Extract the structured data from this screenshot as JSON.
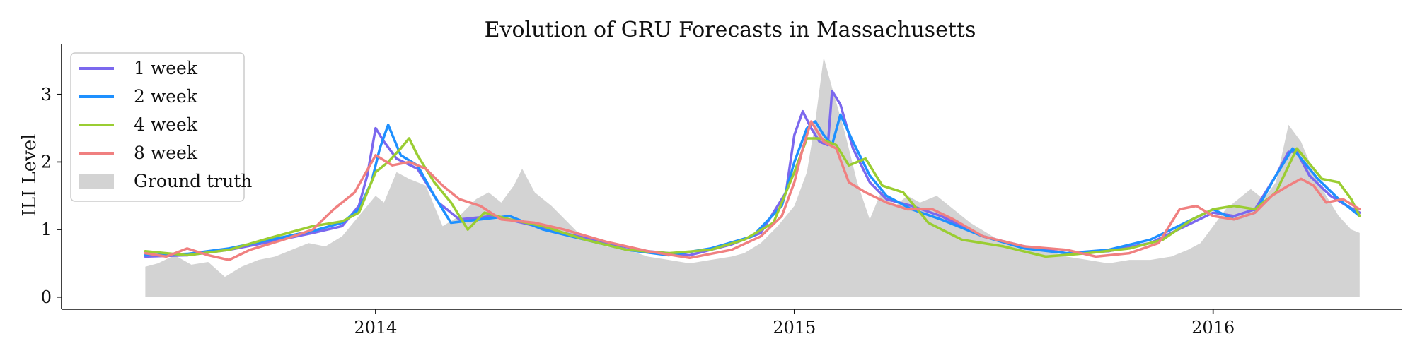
{
  "chart_data": {
    "type": "line",
    "title": "Evolution of GRU Forecasts in Massachusetts",
    "xlabel": "",
    "ylabel": "ILI Level",
    "x_start_year": 2013.45,
    "x_end_year": 2016.35,
    "xlim": [
      2013.25,
      2016.45
    ],
    "ylim": [
      -0.18,
      3.75
    ],
    "x_ticks": [
      {
        "value": 2014,
        "label": "2014"
      },
      {
        "value": 2015,
        "label": "2015"
      },
      {
        "value": 2016,
        "label": "2016"
      }
    ],
    "y_ticks": [
      {
        "value": 0,
        "label": "0"
      },
      {
        "value": 1,
        "label": "1"
      },
      {
        "value": 2,
        "label": "2"
      },
      {
        "value": 3,
        "label": "3"
      }
    ],
    "grid": false,
    "legend": {
      "position": "top-left",
      "entries": [
        {
          "key": "1 week",
          "label": "1 week",
          "color": "#7b68ee",
          "kind": "line"
        },
        {
          "key": "2 week",
          "label": "2 week",
          "color": "#1e90ff",
          "kind": "line"
        },
        {
          "key": "4 week",
          "label": "4 week",
          "color": "#9acd32",
          "kind": "line"
        },
        {
          "key": "8 week",
          "label": "8 week",
          "color": "#f08080",
          "kind": "line"
        },
        {
          "key": "Ground truth",
          "label": "Ground truth",
          "color": "#d3d3d3",
          "kind": "area"
        }
      ]
    },
    "ground_truth": {
      "name": "Ground truth",
      "color": "#d3d3d3",
      "points": [
        [
          2013.45,
          0.45
        ],
        [
          2013.48,
          0.5
        ],
        [
          2013.52,
          0.62
        ],
        [
          2013.56,
          0.48
        ],
        [
          2013.6,
          0.52
        ],
        [
          2013.64,
          0.3
        ],
        [
          2013.68,
          0.45
        ],
        [
          2013.72,
          0.55
        ],
        [
          2013.76,
          0.6
        ],
        [
          2013.8,
          0.7
        ],
        [
          2013.84,
          0.8
        ],
        [
          2013.88,
          0.75
        ],
        [
          2013.92,
          0.9
        ],
        [
          2013.96,
          1.2
        ],
        [
          2014.0,
          1.5
        ],
        [
          2014.02,
          1.4
        ],
        [
          2014.05,
          1.85
        ],
        [
          2014.08,
          1.75
        ],
        [
          2014.12,
          1.65
        ],
        [
          2014.16,
          1.05
        ],
        [
          2014.2,
          1.2
        ],
        [
          2014.24,
          1.45
        ],
        [
          2014.27,
          1.55
        ],
        [
          2014.3,
          1.4
        ],
        [
          2014.33,
          1.65
        ],
        [
          2014.35,
          1.9
        ],
        [
          2014.38,
          1.55
        ],
        [
          2014.42,
          1.35
        ],
        [
          2014.46,
          1.1
        ],
        [
          2014.5,
          0.85
        ],
        [
          2014.55,
          0.75
        ],
        [
          2014.6,
          0.7
        ],
        [
          2014.65,
          0.6
        ],
        [
          2014.7,
          0.55
        ],
        [
          2014.75,
          0.5
        ],
        [
          2014.8,
          0.55
        ],
        [
          2014.85,
          0.6
        ],
        [
          2014.88,
          0.65
        ],
        [
          2014.92,
          0.8
        ],
        [
          2014.96,
          1.05
        ],
        [
          2015.0,
          1.35
        ],
        [
          2015.03,
          1.85
        ],
        [
          2015.05,
          2.6
        ],
        [
          2015.07,
          3.55
        ],
        [
          2015.09,
          3.1
        ],
        [
          2015.12,
          2.45
        ],
        [
          2015.15,
          1.7
        ],
        [
          2015.18,
          1.15
        ],
        [
          2015.21,
          1.6
        ],
        [
          2015.24,
          1.35
        ],
        [
          2015.27,
          1.5
        ],
        [
          2015.3,
          1.4
        ],
        [
          2015.34,
          1.5
        ],
        [
          2015.38,
          1.3
        ],
        [
          2015.42,
          1.1
        ],
        [
          2015.46,
          0.95
        ],
        [
          2015.5,
          0.8
        ],
        [
          2015.55,
          0.75
        ],
        [
          2015.6,
          0.7
        ],
        [
          2015.65,
          0.6
        ],
        [
          2015.7,
          0.55
        ],
        [
          2015.75,
          0.5
        ],
        [
          2015.8,
          0.55
        ],
        [
          2015.85,
          0.55
        ],
        [
          2015.9,
          0.6
        ],
        [
          2015.94,
          0.7
        ],
        [
          2015.97,
          0.8
        ],
        [
          2016.0,
          1.05
        ],
        [
          2016.03,
          1.3
        ],
        [
          2016.06,
          1.45
        ],
        [
          2016.09,
          1.6
        ],
        [
          2016.12,
          1.45
        ],
        [
          2016.15,
          1.7
        ],
        [
          2016.18,
          2.55
        ],
        [
          2016.21,
          2.3
        ],
        [
          2016.24,
          1.85
        ],
        [
          2016.27,
          1.5
        ],
        [
          2016.3,
          1.2
        ],
        [
          2016.33,
          1.0
        ],
        [
          2016.35,
          0.95
        ]
      ]
    },
    "series": [
      {
        "name": "1 week",
        "color": "#7b68ee",
        "points": [
          [
            2013.45,
            0.6
          ],
          [
            2013.55,
            0.62
          ],
          [
            2013.65,
            0.7
          ],
          [
            2013.75,
            0.82
          ],
          [
            2013.85,
            0.95
          ],
          [
            2013.92,
            1.05
          ],
          [
            2013.96,
            1.35
          ],
          [
            2013.98,
            1.8
          ],
          [
            2014.0,
            2.5
          ],
          [
            2014.02,
            2.3
          ],
          [
            2014.05,
            2.05
          ],
          [
            2014.1,
            1.9
          ],
          [
            2014.15,
            1.4
          ],
          [
            2014.2,
            1.15
          ],
          [
            2014.28,
            1.2
          ],
          [
            2014.35,
            1.1
          ],
          [
            2014.45,
            0.95
          ],
          [
            2014.55,
            0.8
          ],
          [
            2014.65,
            0.68
          ],
          [
            2014.75,
            0.62
          ],
          [
            2014.85,
            0.78
          ],
          [
            2014.92,
            0.95
          ],
          [
            2014.98,
            1.55
          ],
          [
            2015.0,
            2.4
          ],
          [
            2015.02,
            2.75
          ],
          [
            2015.04,
            2.5
          ],
          [
            2015.06,
            2.3
          ],
          [
            2015.08,
            2.25
          ],
          [
            2015.09,
            3.05
          ],
          [
            2015.11,
            2.85
          ],
          [
            2015.14,
            2.2
          ],
          [
            2015.18,
            1.7
          ],
          [
            2015.22,
            1.45
          ],
          [
            2015.28,
            1.35
          ],
          [
            2015.35,
            1.2
          ],
          [
            2015.45,
            0.9
          ],
          [
            2015.55,
            0.75
          ],
          [
            2015.65,
            0.65
          ],
          [
            2015.75,
            0.68
          ],
          [
            2015.85,
            0.8
          ],
          [
            2015.95,
            1.1
          ],
          [
            2016.0,
            1.25
          ],
          [
            2016.05,
            1.2
          ],
          [
            2016.1,
            1.3
          ],
          [
            2016.15,
            1.8
          ],
          [
            2016.18,
            2.15
          ],
          [
            2016.2,
            2.15
          ],
          [
            2016.23,
            1.8
          ],
          [
            2016.28,
            1.5
          ],
          [
            2016.32,
            1.35
          ],
          [
            2016.35,
            1.25
          ]
        ]
      },
      {
        "name": "2 week",
        "color": "#1e90ff",
        "points": [
          [
            2013.45,
            0.62
          ],
          [
            2013.55,
            0.64
          ],
          [
            2013.65,
            0.72
          ],
          [
            2013.75,
            0.85
          ],
          [
            2013.85,
            0.98
          ],
          [
            2013.92,
            1.1
          ],
          [
            2013.96,
            1.3
          ],
          [
            2013.99,
            1.7
          ],
          [
            2014.01,
            2.2
          ],
          [
            2014.03,
            2.55
          ],
          [
            2014.06,
            2.1
          ],
          [
            2014.1,
            1.95
          ],
          [
            2014.14,
            1.5
          ],
          [
            2014.18,
            1.1
          ],
          [
            2014.25,
            1.15
          ],
          [
            2014.32,
            1.2
          ],
          [
            2014.4,
            1.0
          ],
          [
            2014.5,
            0.85
          ],
          [
            2014.6,
            0.7
          ],
          [
            2014.7,
            0.62
          ],
          [
            2014.8,
            0.72
          ],
          [
            2014.9,
            0.9
          ],
          [
            2014.97,
            1.35
          ],
          [
            2015.0,
            2.0
          ],
          [
            2015.03,
            2.5
          ],
          [
            2015.05,
            2.6
          ],
          [
            2015.07,
            2.4
          ],
          [
            2015.09,
            2.25
          ],
          [
            2015.11,
            2.7
          ],
          [
            2015.14,
            2.3
          ],
          [
            2015.18,
            1.8
          ],
          [
            2015.22,
            1.5
          ],
          [
            2015.28,
            1.3
          ],
          [
            2015.35,
            1.15
          ],
          [
            2015.45,
            0.9
          ],
          [
            2015.55,
            0.72
          ],
          [
            2015.65,
            0.65
          ],
          [
            2015.75,
            0.7
          ],
          [
            2015.85,
            0.85
          ],
          [
            2015.95,
            1.15
          ],
          [
            2016.0,
            1.3
          ],
          [
            2016.05,
            1.15
          ],
          [
            2016.1,
            1.25
          ],
          [
            2016.15,
            1.8
          ],
          [
            2016.19,
            2.2
          ],
          [
            2016.21,
            2.05
          ],
          [
            2016.25,
            1.75
          ],
          [
            2016.3,
            1.45
          ],
          [
            2016.35,
            1.2
          ]
        ]
      },
      {
        "name": "4 week",
        "color": "#9acd32",
        "points": [
          [
            2013.45,
            0.68
          ],
          [
            2013.5,
            0.65
          ],
          [
            2013.55,
            0.62
          ],
          [
            2013.65,
            0.7
          ],
          [
            2013.75,
            0.88
          ],
          [
            2013.85,
            1.05
          ],
          [
            2013.92,
            1.12
          ],
          [
            2013.96,
            1.25
          ],
          [
            2014.0,
            1.85
          ],
          [
            2014.03,
            2.0
          ],
          [
            2014.06,
            2.2
          ],
          [
            2014.08,
            2.35
          ],
          [
            2014.1,
            2.1
          ],
          [
            2014.14,
            1.7
          ],
          [
            2014.18,
            1.4
          ],
          [
            2014.22,
            1.0
          ],
          [
            2014.26,
            1.25
          ],
          [
            2014.32,
            1.15
          ],
          [
            2014.4,
            1.05
          ],
          [
            2014.5,
            0.85
          ],
          [
            2014.6,
            0.7
          ],
          [
            2014.7,
            0.65
          ],
          [
            2014.8,
            0.7
          ],
          [
            2014.88,
            0.85
          ],
          [
            2014.95,
            1.1
          ],
          [
            2015.0,
            1.85
          ],
          [
            2015.03,
            2.35
          ],
          [
            2015.06,
            2.35
          ],
          [
            2015.1,
            2.25
          ],
          [
            2015.13,
            1.95
          ],
          [
            2015.17,
            2.05
          ],
          [
            2015.21,
            1.65
          ],
          [
            2015.26,
            1.55
          ],
          [
            2015.32,
            1.1
          ],
          [
            2015.4,
            0.85
          ],
          [
            2015.5,
            0.75
          ],
          [
            2015.6,
            0.6
          ],
          [
            2015.7,
            0.65
          ],
          [
            2015.8,
            0.72
          ],
          [
            2015.88,
            0.85
          ],
          [
            2015.95,
            1.15
          ],
          [
            2016.0,
            1.3
          ],
          [
            2016.05,
            1.35
          ],
          [
            2016.1,
            1.3
          ],
          [
            2016.15,
            1.55
          ],
          [
            2016.2,
            2.2
          ],
          [
            2016.22,
            2.05
          ],
          [
            2016.26,
            1.75
          ],
          [
            2016.3,
            1.7
          ],
          [
            2016.33,
            1.45
          ],
          [
            2016.35,
            1.2
          ]
        ]
      },
      {
        "name": "8 week",
        "color": "#f08080",
        "points": [
          [
            2013.45,
            0.65
          ],
          [
            2013.5,
            0.6
          ],
          [
            2013.55,
            0.72
          ],
          [
            2013.6,
            0.62
          ],
          [
            2013.65,
            0.55
          ],
          [
            2013.7,
            0.7
          ],
          [
            2013.78,
            0.85
          ],
          [
            2013.85,
            1.0
          ],
          [
            2013.9,
            1.3
          ],
          [
            2013.95,
            1.55
          ],
          [
            2014.0,
            2.1
          ],
          [
            2014.04,
            1.95
          ],
          [
            2014.08,
            2.0
          ],
          [
            2014.12,
            1.9
          ],
          [
            2014.16,
            1.65
          ],
          [
            2014.2,
            1.45
          ],
          [
            2014.25,
            1.35
          ],
          [
            2014.3,
            1.15
          ],
          [
            2014.38,
            1.1
          ],
          [
            2014.45,
            1.0
          ],
          [
            2014.55,
            0.82
          ],
          [
            2014.65,
            0.68
          ],
          [
            2014.75,
            0.58
          ],
          [
            2014.85,
            0.7
          ],
          [
            2014.92,
            0.9
          ],
          [
            2014.97,
            1.2
          ],
          [
            2015.0,
            1.7
          ],
          [
            2015.02,
            2.2
          ],
          [
            2015.04,
            2.6
          ],
          [
            2015.07,
            2.3
          ],
          [
            2015.1,
            2.2
          ],
          [
            2015.13,
            1.7
          ],
          [
            2015.17,
            1.55
          ],
          [
            2015.22,
            1.4
          ],
          [
            2015.27,
            1.3
          ],
          [
            2015.33,
            1.3
          ],
          [
            2015.38,
            1.15
          ],
          [
            2015.45,
            0.9
          ],
          [
            2015.55,
            0.75
          ],
          [
            2015.65,
            0.7
          ],
          [
            2015.72,
            0.6
          ],
          [
            2015.8,
            0.65
          ],
          [
            2015.87,
            0.8
          ],
          [
            2015.92,
            1.3
          ],
          [
            2015.96,
            1.35
          ],
          [
            2016.0,
            1.2
          ],
          [
            2016.05,
            1.15
          ],
          [
            2016.1,
            1.25
          ],
          [
            2016.14,
            1.5
          ],
          [
            2016.18,
            1.65
          ],
          [
            2016.21,
            1.75
          ],
          [
            2016.24,
            1.65
          ],
          [
            2016.27,
            1.4
          ],
          [
            2016.31,
            1.45
          ],
          [
            2016.35,
            1.3
          ]
        ]
      }
    ]
  }
}
